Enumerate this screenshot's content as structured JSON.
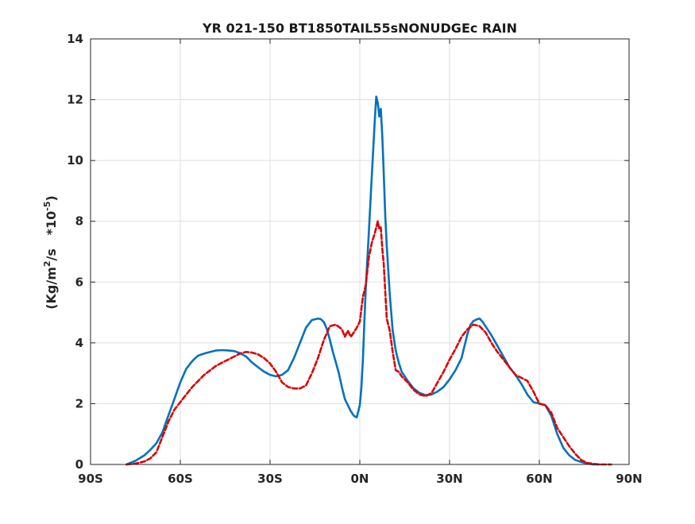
{
  "chart_data": {
    "type": "line",
    "title": "YR 021-150 BT1850TAIL55sNONUDGEc RAIN",
    "ylabel": {
      "prefix": "(Kg/m",
      "sup1": "2",
      "mid": "/s   *10",
      "sup2": "-5",
      "suffix": ")"
    },
    "xlim": [
      -90,
      90
    ],
    "ylim": [
      0,
      14
    ],
    "xticks": [
      -90,
      -60,
      -30,
      0,
      30,
      60,
      90
    ],
    "xtick_labels": [
      "90S",
      "60S",
      "30S",
      "0N",
      "30N",
      "60N",
      "90N"
    ],
    "yticks": [
      0,
      2,
      4,
      6,
      8,
      10,
      12,
      14
    ],
    "ytick_labels": [
      "0",
      "2",
      "4",
      "6",
      "8",
      "10",
      "12",
      "14"
    ],
    "grid": true,
    "legend": "none",
    "series": [
      {
        "color": "#0072BD",
        "style": "solid",
        "x": [
          -78,
          -75,
          -72,
          -70,
          -68,
          -66,
          -64,
          -62,
          -60,
          -58,
          -56,
          -55,
          -54,
          -52,
          -50,
          -48,
          -46,
          -44,
          -42,
          -40,
          -38,
          -36,
          -34,
          -32,
          -30,
          -28,
          -26,
          -24,
          -22,
          -20,
          -18,
          -16,
          -14,
          -13,
          -12,
          -11,
          -10,
          -9,
          -8,
          -7,
          -6,
          -5,
          -4,
          -3,
          -2,
          -1,
          0,
          0.5,
          1,
          1.5,
          2,
          3,
          4,
          5,
          5.5,
          6,
          6.5,
          7,
          7.5,
          8,
          8.5,
          9,
          10,
          11,
          12,
          13,
          14,
          16,
          18,
          20,
          22,
          24,
          26,
          28,
          30,
          32,
          34,
          35,
          36,
          37,
          38,
          39,
          40,
          41,
          42,
          44,
          46,
          48,
          50,
          52,
          54,
          56,
          58,
          60,
          62,
          64,
          66,
          68,
          70,
          72,
          74,
          76,
          78,
          80
        ],
        "y": [
          0.0,
          0.12,
          0.3,
          0.48,
          0.7,
          1.05,
          1.6,
          2.15,
          2.7,
          3.15,
          3.4,
          3.5,
          3.58,
          3.65,
          3.7,
          3.75,
          3.76,
          3.75,
          3.73,
          3.66,
          3.55,
          3.35,
          3.2,
          3.05,
          2.95,
          2.9,
          2.95,
          3.1,
          3.5,
          4.0,
          4.5,
          4.75,
          4.8,
          4.78,
          4.68,
          4.45,
          4.1,
          3.7,
          3.35,
          3.0,
          2.55,
          2.15,
          1.95,
          1.75,
          1.6,
          1.55,
          1.95,
          2.5,
          3.4,
          4.6,
          5.8,
          7.6,
          9.5,
          11.3,
          12.1,
          11.9,
          11.45,
          11.7,
          10.8,
          9.6,
          8.2,
          7.2,
          5.6,
          4.4,
          3.75,
          3.35,
          3.05,
          2.75,
          2.5,
          2.35,
          2.28,
          2.3,
          2.4,
          2.55,
          2.8,
          3.1,
          3.5,
          3.9,
          4.3,
          4.6,
          4.72,
          4.77,
          4.8,
          4.7,
          4.55,
          4.25,
          3.9,
          3.55,
          3.2,
          2.95,
          2.65,
          2.3,
          2.05,
          2.0,
          1.95,
          1.6,
          1.0,
          0.55,
          0.3,
          0.15,
          0.08,
          0.03,
          0.0,
          0.0
        ]
      },
      {
        "color": "#DC0000",
        "style": "dashed",
        "x": [
          -78,
          -75,
          -72,
          -70,
          -68,
          -66,
          -64,
          -62,
          -60,
          -58,
          -56,
          -54,
          -52,
          -50,
          -48,
          -46,
          -44,
          -42,
          -40,
          -38,
          -36,
          -34,
          -32,
          -30,
          -28,
          -26,
          -24,
          -22,
          -20,
          -18,
          -16,
          -14,
          -12,
          -10,
          -8,
          -6,
          -5,
          -4,
          -3,
          -2,
          -1,
          0,
          1,
          2,
          3,
          4,
          5,
          6,
          6.5,
          7,
          7.5,
          8,
          9,
          10,
          11,
          12,
          13,
          14,
          16,
          18,
          20,
          22,
          24,
          26,
          28,
          30,
          32,
          34,
          36,
          38,
          40,
          42,
          44,
          46,
          48,
          50,
          52,
          54,
          56,
          58,
          60,
          62,
          64,
          66,
          68,
          70,
          72,
          74,
          76,
          78,
          80,
          82,
          84
        ],
        "y": [
          0.0,
          0.03,
          0.1,
          0.2,
          0.4,
          0.9,
          1.4,
          1.8,
          2.05,
          2.3,
          2.55,
          2.75,
          2.95,
          3.1,
          3.25,
          3.35,
          3.45,
          3.55,
          3.65,
          3.7,
          3.68,
          3.62,
          3.5,
          3.32,
          3.05,
          2.7,
          2.55,
          2.5,
          2.5,
          2.6,
          3.0,
          3.5,
          4.1,
          4.55,
          4.6,
          4.45,
          4.2,
          4.4,
          4.2,
          4.35,
          4.5,
          4.7,
          5.5,
          5.9,
          6.8,
          7.3,
          7.6,
          8.0,
          7.75,
          7.8,
          7.1,
          6.6,
          4.8,
          4.4,
          3.7,
          3.1,
          3.05,
          2.9,
          2.7,
          2.45,
          2.3,
          2.25,
          2.35,
          2.7,
          3.05,
          3.45,
          3.8,
          4.2,
          4.45,
          4.6,
          4.55,
          4.35,
          4.0,
          3.7,
          3.45,
          3.2,
          2.95,
          2.85,
          2.75,
          2.4,
          2.0,
          1.95,
          1.7,
          1.2,
          0.9,
          0.6,
          0.35,
          0.15,
          0.05,
          0.02,
          0.0,
          0.0,
          0.0
        ]
      }
    ]
  }
}
